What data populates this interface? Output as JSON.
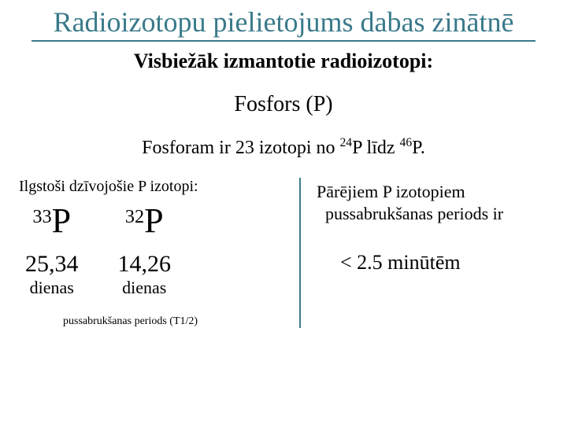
{
  "title": "Radioizotopu pielietojums dabas zinātnē",
  "subtitle": "Visbiežāk izmantotie radioizotopi:",
  "element": "Fosfors (P)",
  "range_prefix": "Fosforam ir 23 izotopi no ",
  "range_iso1_sup": "24",
  "range_iso1": "P",
  "range_mid": " līdz ",
  "range_iso2_sup": "46",
  "range_iso2": "P.",
  "left": {
    "label": "Ilgstoši dzīvojošie P izotopi:",
    "isotopes": [
      {
        "sup": "33",
        "sym": "P",
        "value": "25,34",
        "unit": "dienas"
      },
      {
        "sup": "32",
        "sym": "P",
        "value": "14,26",
        "unit": "dienas"
      }
    ],
    "footnote": "pussabrukšanas periods (T1/2)"
  },
  "right": {
    "line1": "Pārējiem P izotopiem",
    "line2": "pussabrukšanas periods ir",
    "value": "< 2.5 minūtēm"
  },
  "colors": {
    "accent": "#3a7a8a",
    "text": "#000000",
    "background": "#ffffff"
  }
}
